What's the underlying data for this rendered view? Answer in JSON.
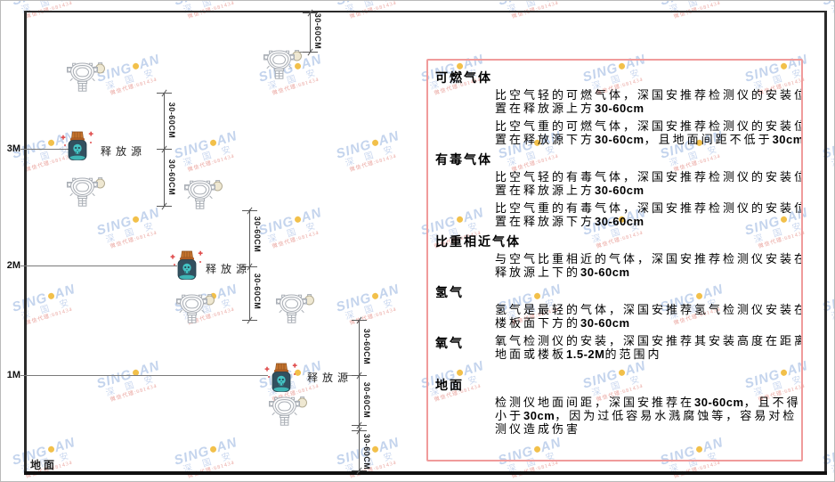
{
  "watermark": {
    "brand_left": "SING",
    "brand_right": "AN",
    "cn_chars": "深 国 安",
    "contact": "微信代理:681434",
    "brand_color": "#c4d4ed",
    "dot_color": "#f2c04a",
    "contact_color": "#eaa49e"
  },
  "diagram": {
    "height_markers": [
      "3M",
      "2M",
      "1M"
    ],
    "floor_label": "地面",
    "source_label": "释放源",
    "dim_label": "30-60CM"
  },
  "icon_colors": {
    "detector_stroke": "#a9aeb5",
    "detector_ball_fill": "#efe8d2",
    "jar_body": "#32505f",
    "jar_lid": "#c8752e",
    "jar_skull": "#44c3c3",
    "sparkle_red": "#e05050"
  },
  "panel": {
    "border_color": "#f09b9b",
    "sections": [
      {
        "title": "可燃气体",
        "inline": false,
        "paragraphs": [
          "比空气轻的可燃气体，深国安推荐检测仪的安装位置在释放源上方30-60cm",
          "比空气重的可燃气体，深国安推荐检测仪的安装位置在释放源下方30-60cm，且地面间距不低于30cm"
        ]
      },
      {
        "title": "有毒气体",
        "inline": false,
        "paragraphs": [
          "比空气轻的有毒气体，深国安推荐检测仪的安装位置在释放源上方30-60cm",
          "比空气重的有毒气体，深国安推荐检测仪的安装位置在释放源下方30-60cm"
        ]
      },
      {
        "title": "比重相近气体",
        "inline": false,
        "paragraphs": [
          "与空气比重相近的气体，深国安推荐检测仪安装在释放源上下的30-60cm"
        ]
      },
      {
        "title": "氢气",
        "inline": false,
        "paragraphs": [
          "氢气是最轻的气体，深国安推荐氢气检测仪安装在楼板面下方的30-60cm"
        ]
      },
      {
        "title": "氧气",
        "inline": true,
        "paragraphs": [
          "氧气检测仪的安装，深国安推荐其安装高度在距离地面或楼板1.5-2M的范围内"
        ]
      },
      {
        "title": "地面",
        "inline": false,
        "paragraphs": [
          "检测仪地面间距，深国安推荐在30-60cm，且不得小于30cm，因为过低容易水溅腐蚀等，容易对检测仪造成伤害"
        ]
      }
    ]
  }
}
